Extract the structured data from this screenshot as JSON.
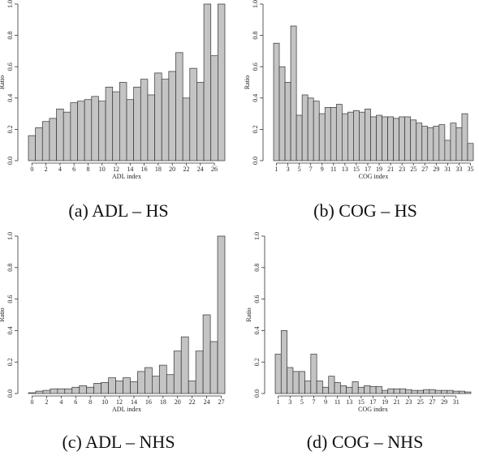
{
  "chart_data": [
    {
      "type": "bar",
      "caption": "(a) ADL – HS",
      "xlabel": "ADL index",
      "ylabel": "Ratio",
      "color": "#c4c4c4",
      "categories": [
        0,
        null,
        2,
        null,
        4,
        null,
        6,
        null,
        8,
        null,
        10,
        null,
        12,
        null,
        14,
        null,
        16,
        null,
        18,
        null,
        20,
        null,
        22,
        null,
        24,
        null,
        26,
        null
      ],
      "values": [
        0.16,
        0.21,
        0.25,
        0.27,
        0.33,
        0.31,
        0.37,
        0.38,
        0.39,
        0.41,
        0.38,
        0.47,
        0.44,
        0.5,
        0.39,
        0.47,
        0.52,
        0.42,
        0.56,
        0.52,
        0.57,
        0.69,
        0.4,
        0.59,
        0.5,
        1.0,
        0.67,
        1.0
      ],
      "ylim": [
        0,
        1
      ],
      "yticks": [
        {
          "value": 0,
          "label": "0.0"
        },
        0.2,
        0.4,
        0.6,
        0.8,
        {
          "value": 1,
          "label": "1.0"
        }
      ]
    },
    {
      "type": "bar",
      "caption": "(b) COG – HS",
      "xlabel": "COG index",
      "ylabel": "Ratio",
      "color": "#c4c4c4",
      "categories": [
        1,
        null,
        3,
        null,
        5,
        null,
        7,
        null,
        9,
        null,
        11,
        null,
        13,
        null,
        15,
        null,
        17,
        null,
        19,
        null,
        21,
        null,
        23,
        null,
        25,
        null,
        27,
        null,
        29,
        null,
        31,
        null,
        33,
        null,
        35
      ],
      "values": [
        0.75,
        0.6,
        0.5,
        0.86,
        0.29,
        0.42,
        0.4,
        0.38,
        0.3,
        0.34,
        0.34,
        0.36,
        0.3,
        0.31,
        0.32,
        0.31,
        0.33,
        0.28,
        0.29,
        0.28,
        0.28,
        0.27,
        0.28,
        0.28,
        0.26,
        0.24,
        0.22,
        0.21,
        0.22,
        0.23,
        0.13,
        0.24,
        0.21,
        0.3,
        0.11
      ],
      "ylim": [
        0,
        1
      ],
      "yticks": [
        {
          "value": 0,
          "label": "0.0"
        },
        0.2,
        0.4,
        0.6,
        0.8,
        {
          "value": 1,
          "label": "1.0"
        }
      ]
    },
    {
      "type": "bar",
      "caption": "(c) ADL – NHS",
      "xlabel": "ADL index",
      "ylabel": "Ratio",
      "color": "#c4c4c4",
      "categories": [
        0,
        null,
        2,
        null,
        4,
        null,
        6,
        null,
        8,
        null,
        10,
        null,
        12,
        null,
        14,
        null,
        16,
        null,
        18,
        null,
        20,
        null,
        22,
        null,
        24,
        null,
        27
      ],
      "values": [
        0.005,
        0.015,
        0.02,
        0.03,
        0.03,
        0.03,
        0.04,
        0.05,
        0.04,
        0.065,
        0.07,
        0.1,
        0.08,
        0.1,
        0.075,
        0.14,
        0.165,
        0.11,
        0.18,
        0.12,
        0.27,
        0.36,
        0.08,
        0.27,
        0.5,
        0.33,
        1.0
      ],
      "ylim": [
        0,
        1
      ],
      "yticks": [
        {
          "value": 0,
          "label": "0.0"
        },
        0.2,
        0.4,
        0.6,
        0.8,
        {
          "value": 1,
          "label": "1.0"
        }
      ]
    },
    {
      "type": "bar",
      "caption": "(d) COG – NHS",
      "xlabel": "COG index",
      "ylabel": "Ratio",
      "color": "#c4c4c4",
      "categories": [
        1,
        null,
        3,
        null,
        5,
        null,
        7,
        null,
        9,
        null,
        11,
        null,
        13,
        null,
        15,
        null,
        17,
        null,
        19,
        null,
        21,
        null,
        23,
        null,
        25,
        null,
        27,
        null,
        29,
        null,
        31,
        null,
        null
      ],
      "values": [
        0.25,
        0.4,
        0.165,
        0.14,
        0.14,
        0.08,
        0.25,
        0.08,
        0.04,
        0.11,
        0.07,
        0.05,
        0.04,
        0.075,
        0.04,
        0.05,
        0.045,
        0.045,
        0.02,
        0.03,
        0.03,
        0.03,
        0.025,
        0.02,
        0.02,
        0.025,
        0.025,
        0.02,
        0.02,
        0.02,
        0.015,
        0.015,
        0.01
      ],
      "ylim": [
        0,
        1
      ],
      "yticks": [
        {
          "value": 0,
          "label": "0.0"
        },
        0.2,
        0.4,
        0.6,
        0.8,
        {
          "value": 1,
          "label": "1.0"
        }
      ]
    }
  ]
}
